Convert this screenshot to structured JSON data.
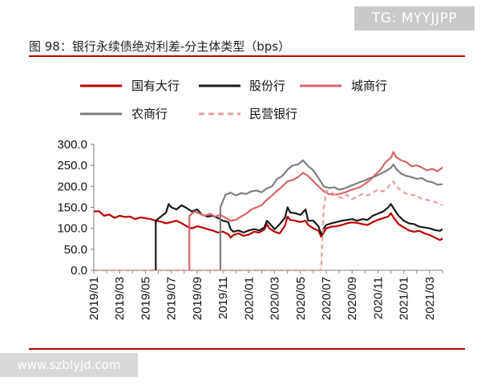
{
  "watermark_top": "TG: MYYJJPP",
  "watermark_bottom": "www.szblyjd.com",
  "figure_title": "图 98：银行永续债绝对利差-分主体类型（bps）",
  "colors": {
    "state": "#c00000",
    "joint": "#1a1a1a",
    "city": "#d9656c",
    "rural": "#7f7f7f",
    "private": "#e6a0a3"
  },
  "chart_data": {
    "type": "line",
    "ylim": [
      0,
      300
    ],
    "yticks": [
      "300.0",
      "250.0",
      "200.0",
      "150.0",
      "100.0",
      "50.0",
      "0.0"
    ],
    "xticks": [
      "2019/01",
      "2019/03",
      "2019/05",
      "2019/07",
      "2019/09",
      "2019/11",
      "2020/01",
      "2020/03",
      "2020/05",
      "2020/07",
      "2020/09",
      "2020/11",
      "2021/01",
      "2021/03"
    ],
    "x_month_range": [
      0,
      27
    ],
    "legend": [
      "国有大行",
      "股份行",
      "城商行",
      "农商行",
      "民营银行"
    ],
    "series": [
      {
        "name": "国有大行",
        "key": "state",
        "dash": false,
        "points": [
          [
            0,
            140
          ],
          [
            0.4,
            141
          ],
          [
            0.8,
            130
          ],
          [
            1.2,
            133
          ],
          [
            1.6,
            125
          ],
          [
            2,
            130
          ],
          [
            2.4,
            127
          ],
          [
            2.8,
            128
          ],
          [
            3.2,
            122
          ],
          [
            3.6,
            126
          ],
          [
            4,
            124
          ],
          [
            4.4,
            122
          ],
          [
            4.8,
            118
          ],
          [
            5.2,
            116
          ],
          [
            5.6,
            112
          ],
          [
            6,
            115
          ],
          [
            6.4,
            118
          ],
          [
            6.8,
            112
          ],
          [
            7.2,
            105
          ],
          [
            7.6,
            100
          ],
          [
            8,
            105
          ],
          [
            8.4,
            102
          ],
          [
            8.8,
            98
          ],
          [
            9.2,
            95
          ],
          [
            9.6,
            90
          ],
          [
            10,
            92
          ],
          [
            10.4,
            86
          ],
          [
            10.6,
            78
          ],
          [
            10.8,
            84
          ],
          [
            11.2,
            88
          ],
          [
            11.6,
            82
          ],
          [
            12,
            85
          ],
          [
            12.4,
            92
          ],
          [
            12.8,
            90
          ],
          [
            13.2,
            97
          ],
          [
            13.4,
            110
          ],
          [
            13.6,
            100
          ],
          [
            14,
            92
          ],
          [
            14.4,
            88
          ],
          [
            14.8,
            106
          ],
          [
            15,
            128
          ],
          [
            15.2,
            120
          ],
          [
            15.6,
            118
          ],
          [
            16,
            115
          ],
          [
            16.4,
            118
          ],
          [
            16.6,
            108
          ],
          [
            17,
            100
          ],
          [
            17.4,
            94
          ],
          [
            17.6,
            80
          ],
          [
            17.8,
            90
          ],
          [
            18,
            100
          ],
          [
            18.4,
            104
          ],
          [
            18.8,
            105
          ],
          [
            19.2,
            108
          ],
          [
            19.6,
            112
          ],
          [
            20,
            114
          ],
          [
            20.4,
            113
          ],
          [
            20.8,
            110
          ],
          [
            21.2,
            108
          ],
          [
            21.6,
            115
          ],
          [
            22,
            120
          ],
          [
            22.4,
            124
          ],
          [
            22.8,
            128
          ],
          [
            23,
            136
          ],
          [
            23.2,
            126
          ],
          [
            23.6,
            110
          ],
          [
            24,
            102
          ],
          [
            24.4,
            95
          ],
          [
            24.8,
            92
          ],
          [
            25.2,
            94
          ],
          [
            25.6,
            88
          ],
          [
            26,
            84
          ],
          [
            26.4,
            78
          ],
          [
            26.8,
            72
          ],
          [
            27,
            76
          ]
        ]
      },
      {
        "name": "股份行",
        "key": "joint",
        "dash": false,
        "points": [
          [
            4.8,
            0
          ],
          [
            4.8,
            118
          ],
          [
            5.2,
            128
          ],
          [
            5.6,
            138
          ],
          [
            5.8,
            158
          ],
          [
            6,
            150
          ],
          [
            6.4,
            145
          ],
          [
            6.8,
            155
          ],
          [
            7.2,
            148
          ],
          [
            7.6,
            140
          ],
          [
            8,
            145
          ],
          [
            8.4,
            132
          ],
          [
            8.8,
            128
          ],
          [
            9.2,
            130
          ],
          [
            9.6,
            125
          ],
          [
            10,
            118
          ],
          [
            10.4,
            115
          ],
          [
            10.6,
            98
          ],
          [
            10.8,
            92
          ],
          [
            11.2,
            95
          ],
          [
            11.6,
            90
          ],
          [
            12,
            95
          ],
          [
            12.4,
            98
          ],
          [
            12.8,
            95
          ],
          [
            13.2,
            102
          ],
          [
            13.4,
            118
          ],
          [
            13.6,
            112
          ],
          [
            14,
            98
          ],
          [
            14.4,
            110
          ],
          [
            14.8,
            125
          ],
          [
            15,
            150
          ],
          [
            15.2,
            138
          ],
          [
            15.6,
            136
          ],
          [
            16,
            132
          ],
          [
            16.4,
            145
          ],
          [
            16.6,
            118
          ],
          [
            17,
            118
          ],
          [
            17.4,
            105
          ],
          [
            17.6,
            85
          ],
          [
            17.8,
            100
          ],
          [
            18,
            108
          ],
          [
            18.4,
            112
          ],
          [
            18.8,
            115
          ],
          [
            19.2,
            118
          ],
          [
            19.6,
            120
          ],
          [
            20,
            122
          ],
          [
            20.4,
            118
          ],
          [
            20.8,
            122
          ],
          [
            21.2,
            120
          ],
          [
            21.6,
            130
          ],
          [
            22,
            135
          ],
          [
            22.4,
            140
          ],
          [
            22.8,
            150
          ],
          [
            23,
            158
          ],
          [
            23.2,
            148
          ],
          [
            23.6,
            130
          ],
          [
            24,
            118
          ],
          [
            24.4,
            112
          ],
          [
            24.8,
            110
          ],
          [
            25.2,
            104
          ],
          [
            25.6,
            102
          ],
          [
            26,
            100
          ],
          [
            26.4,
            96
          ],
          [
            26.8,
            94
          ],
          [
            27,
            98
          ]
        ]
      },
      {
        "name": "城商行",
        "key": "city",
        "dash": false,
        "points": [
          [
            7.4,
            0
          ],
          [
            7.4,
            130
          ],
          [
            7.8,
            140
          ],
          [
            8.2,
            135
          ],
          [
            8.6,
            130
          ],
          [
            9,
            135
          ],
          [
            9.4,
            128
          ],
          [
            9.8,
            132
          ],
          [
            10.2,
            125
          ],
          [
            10.6,
            118
          ],
          [
            11,
            120
          ],
          [
            11.4,
            128
          ],
          [
            11.8,
            135
          ],
          [
            12.2,
            145
          ],
          [
            12.6,
            150
          ],
          [
            13,
            155
          ],
          [
            13.4,
            168
          ],
          [
            13.8,
            178
          ],
          [
            14.2,
            190
          ],
          [
            14.6,
            200
          ],
          [
            15,
            212
          ],
          [
            15.4,
            215
          ],
          [
            15.8,
            222
          ],
          [
            16.2,
            232
          ],
          [
            16.6,
            225
          ],
          [
            17,
            212
          ],
          [
            17.4,
            200
          ],
          [
            17.8,
            188
          ],
          [
            18.2,
            182
          ],
          [
            18.6,
            180
          ],
          [
            19,
            182
          ],
          [
            19.4,
            185
          ],
          [
            19.8,
            190
          ],
          [
            20.2,
            194
          ],
          [
            20.6,
            198
          ],
          [
            21,
            206
          ],
          [
            21.4,
            215
          ],
          [
            21.8,
            228
          ],
          [
            22.2,
            240
          ],
          [
            22.6,
            258
          ],
          [
            23,
            268
          ],
          [
            23.2,
            282
          ],
          [
            23.4,
            270
          ],
          [
            23.8,
            262
          ],
          [
            24.2,
            258
          ],
          [
            24.6,
            248
          ],
          [
            25,
            250
          ],
          [
            25.4,
            245
          ],
          [
            25.8,
            238
          ],
          [
            26.2,
            242
          ],
          [
            26.6,
            236
          ],
          [
            27,
            245
          ]
        ]
      },
      {
        "name": "农商行",
        "key": "rural",
        "dash": false,
        "points": [
          [
            9.8,
            0
          ],
          [
            9.8,
            150
          ],
          [
            10.2,
            180
          ],
          [
            10.6,
            185
          ],
          [
            11,
            178
          ],
          [
            11.4,
            184
          ],
          [
            11.8,
            182
          ],
          [
            12.2,
            188
          ],
          [
            12.6,
            190
          ],
          [
            13,
            186
          ],
          [
            13.4,
            195
          ],
          [
            13.8,
            200
          ],
          [
            14.2,
            218
          ],
          [
            14.6,
            225
          ],
          [
            15,
            240
          ],
          [
            15.4,
            250
          ],
          [
            15.8,
            252
          ],
          [
            16.2,
            262
          ],
          [
            16.6,
            248
          ],
          [
            17,
            238
          ],
          [
            17.4,
            220
          ],
          [
            17.8,
            200
          ],
          [
            18.2,
            196
          ],
          [
            18.6,
            198
          ],
          [
            19,
            192
          ],
          [
            19.4,
            195
          ],
          [
            19.8,
            200
          ],
          [
            20.2,
            205
          ],
          [
            20.6,
            210
          ],
          [
            21,
            214
          ],
          [
            21.4,
            220
          ],
          [
            21.8,
            224
          ],
          [
            22.2,
            230
          ],
          [
            22.6,
            236
          ],
          [
            23,
            244
          ],
          [
            23.2,
            252
          ],
          [
            23.4,
            242
          ],
          [
            23.8,
            230
          ],
          [
            24.2,
            225
          ],
          [
            24.6,
            222
          ],
          [
            25,
            218
          ],
          [
            25.4,
            220
          ],
          [
            25.8,
            212
          ],
          [
            26.2,
            210
          ],
          [
            26.6,
            204
          ],
          [
            27,
            205
          ]
        ]
      },
      {
        "name": "民营银行",
        "key": "private",
        "dash": true,
        "points": [
          [
            0,
            0
          ],
          [
            17.6,
            0
          ],
          [
            17.8,
            150
          ],
          [
            18,
            190
          ],
          [
            18.4,
            185
          ],
          [
            18.8,
            178
          ],
          [
            19.2,
            172
          ],
          [
            19.6,
            180
          ],
          [
            20,
            170
          ],
          [
            20.4,
            175
          ],
          [
            20.8,
            182
          ],
          [
            21.2,
            178
          ],
          [
            21.6,
            185
          ],
          [
            22,
            192
          ],
          [
            22.4,
            188
          ],
          [
            22.8,
            198
          ],
          [
            23,
            208
          ],
          [
            23.2,
            212
          ],
          [
            23.4,
            200
          ],
          [
            23.8,
            190
          ],
          [
            24.2,
            182
          ],
          [
            24.6,
            180
          ],
          [
            25,
            178
          ],
          [
            25.4,
            170
          ],
          [
            25.8,
            168
          ],
          [
            26.2,
            165
          ],
          [
            26.6,
            160
          ],
          [
            27,
            155
          ]
        ]
      }
    ]
  }
}
